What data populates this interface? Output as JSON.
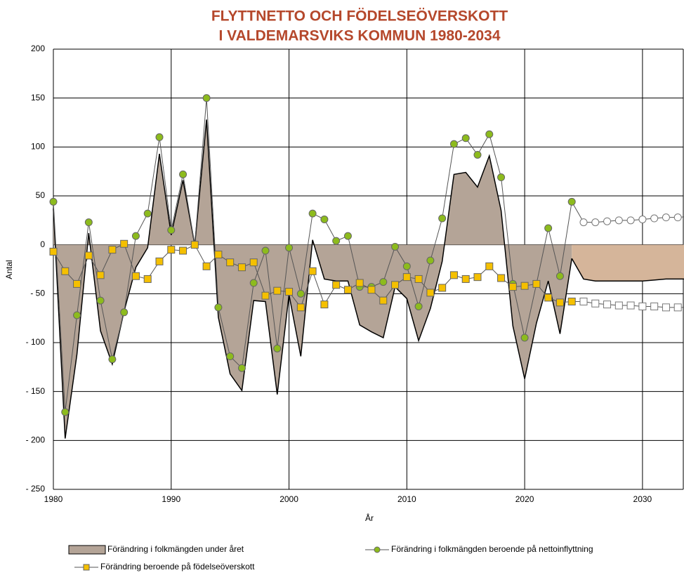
{
  "chart_data": {
    "type": "line",
    "title": [
      "FLYTTNETTO OCH FÖDELSEÖVERSKOTT",
      "I VALDEMARSVIKS KOMMUN 1980-2034"
    ],
    "x_label": "År",
    "y_label": "Antal",
    "x": [
      1980,
      1981,
      1982,
      1983,
      1984,
      1985,
      1986,
      1987,
      1988,
      1989,
      1990,
      1991,
      1992,
      1993,
      1994,
      1995,
      1996,
      1997,
      1998,
      1999,
      2000,
      2001,
      2002,
      2003,
      2004,
      2005,
      2006,
      2007,
      2008,
      2009,
      2010,
      2011,
      2012,
      2013,
      2014,
      2015,
      2016,
      2017,
      2018,
      2019,
      2020,
      2021,
      2022,
      2023,
      2024,
      2025,
      2026,
      2027,
      2028,
      2029,
      2030,
      2031,
      2032,
      2033,
      2034
    ],
    "forecast_after": 2024,
    "series": [
      {
        "name": "Förändring i folkmängden under året",
        "kind": "area",
        "color": "#b4a497",
        "forecast_color": "#d5b59a",
        "values": [
          37,
          -198,
          -112,
          12,
          -88,
          -122,
          -68,
          -23,
          -3,
          93,
          10,
          66,
          0,
          128,
          -74,
          -132,
          -149,
          -57,
          -58,
          -153,
          -51,
          -114,
          5,
          -35,
          -37,
          -37,
          -82,
          -89,
          -95,
          -43,
          -55,
          -98,
          -65,
          -17,
          72,
          74,
          59,
          91,
          35,
          -83,
          -137,
          -80,
          -37,
          -91,
          -14,
          -35,
          -37,
          -37,
          -37,
          -37,
          -37,
          -36,
          -35,
          -35,
          -35
        ]
      },
      {
        "name": "Förändring i folkmängden beroende på nettoinflyttning",
        "kind": "circle",
        "color": "#8dbb1d",
        "values": [
          44,
          -171,
          -72,
          23,
          -57,
          -117,
          -69,
          9,
          32,
          110,
          15,
          72,
          0,
          150,
          -64,
          -114,
          -126,
          -39,
          -6,
          -106,
          -3,
          -50,
          32,
          26,
          4,
          9,
          -43,
          -43,
          -38,
          -2,
          -22,
          -63,
          -16,
          27,
          103,
          109,
          92,
          113,
          69,
          -40,
          -95,
          -40,
          17,
          -32,
          44,
          23,
          23,
          24,
          25,
          25,
          26,
          27,
          28,
          28,
          29
        ]
      },
      {
        "name": "Förändring beroende på födelseöverskott",
        "kind": "square",
        "color": "#f5c000",
        "values": [
          -7,
          -27,
          -40,
          -11,
          -31,
          -5,
          1,
          -32,
          -35,
          -17,
          -5,
          -6,
          0,
          -22,
          -10,
          -18,
          -23,
          -18,
          -52,
          -47,
          -48,
          -64,
          -27,
          -61,
          -41,
          -46,
          -39,
          -46,
          -57,
          -41,
          -33,
          -35,
          -49,
          -44,
          -31,
          -35,
          -33,
          -22,
          -34,
          -43,
          -42,
          -40,
          -54,
          -59,
          -58,
          -58,
          -60,
          -61,
          -62,
          -62,
          -63,
          -63,
          -64,
          -64,
          -64
        ]
      }
    ],
    "xlim": [
      1980,
      2034
    ],
    "xticks": [
      1980,
      1990,
      2000,
      2010,
      2020,
      2030
    ],
    "ylim": [
      -250,
      200
    ],
    "yticks": [
      {
        "value": -250,
        "label": "- 250"
      },
      {
        "value": -200,
        "label": "- 200"
      },
      {
        "value": -150,
        "label": "- 150"
      },
      {
        "value": -100,
        "label": "- 100"
      },
      {
        "value": -50,
        "label": "- 50"
      },
      0,
      50,
      100,
      150,
      200
    ],
    "grid": true
  }
}
